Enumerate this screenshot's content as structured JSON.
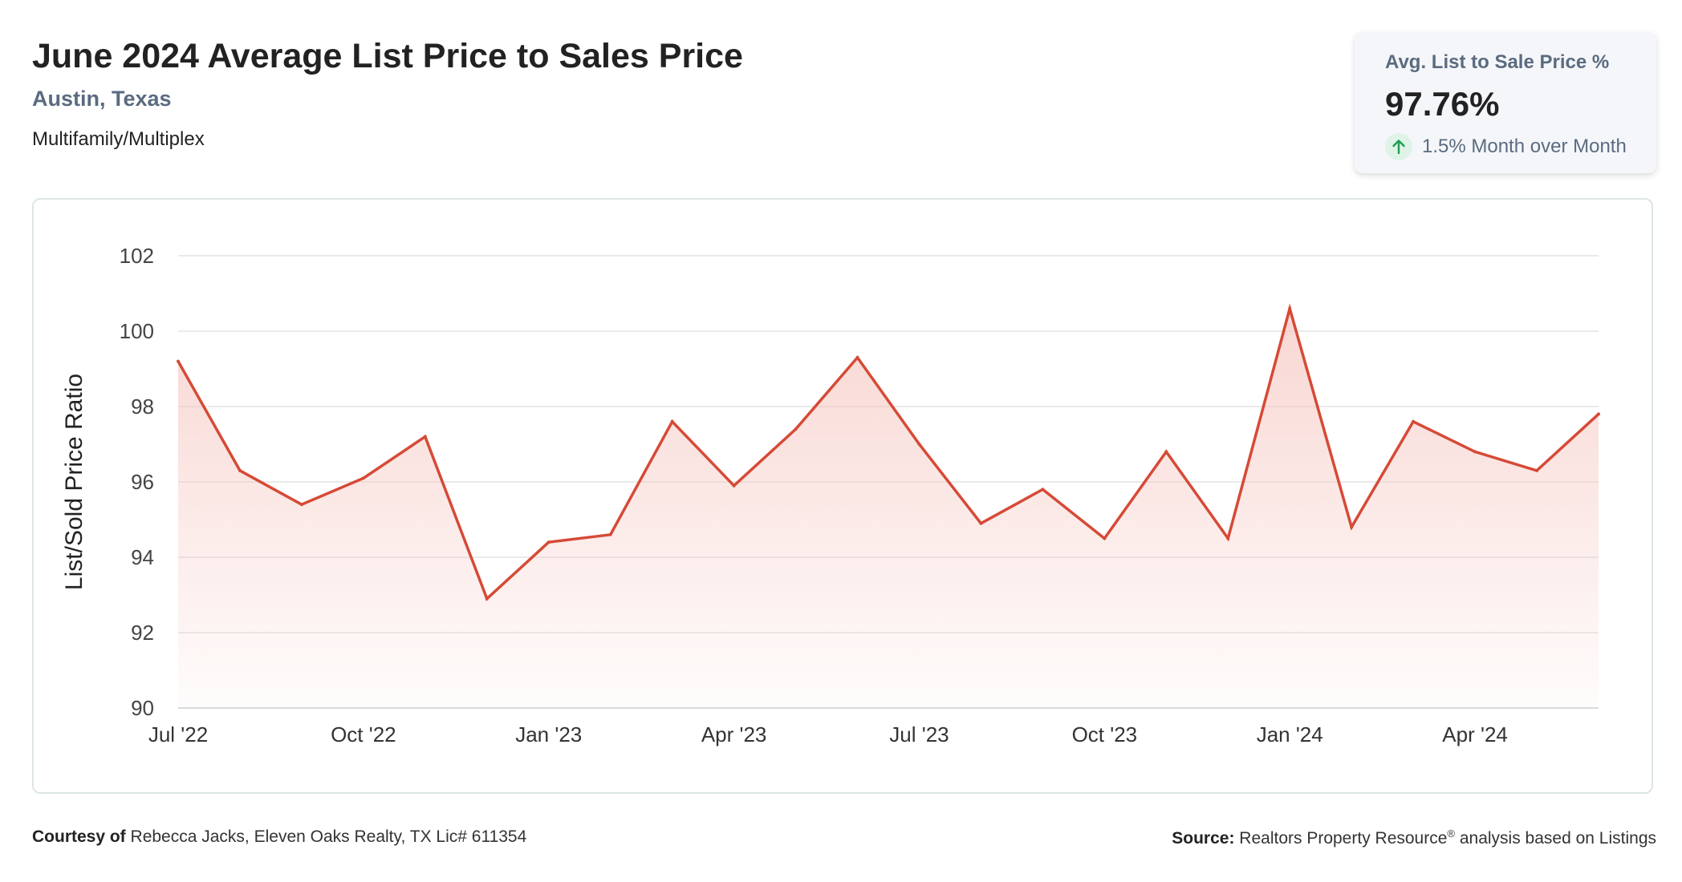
{
  "header": {
    "title": "June 2024 Average List Price to Sales Price",
    "subtitle": "Austin, Texas",
    "category": "Multifamily/Multiplex"
  },
  "stat_card": {
    "label": "Avg. List to Sale Price %",
    "value": "97.76%",
    "change_text": "1.5% Month over Month",
    "change_icon": "arrow-up-icon",
    "change_color": "#1e9e4f"
  },
  "footer": {
    "courtesy_label": "Courtesy of",
    "courtesy_text": "Rebecca Jacks, Eleven Oaks Realty, TX Lic# 611354",
    "source_label": "Source:",
    "source_text_before": "Realtors Property Resource",
    "source_mark": "®",
    "source_text_after": "analysis based on Listings"
  },
  "chart_data": {
    "type": "area",
    "ylabel": "List/Sold Price Ratio",
    "ylim": [
      90,
      102
    ],
    "yticks": [
      "90",
      "92",
      "94",
      "96",
      "98",
      "100",
      "102"
    ],
    "x": [
      "Jul '22",
      "Aug '22",
      "Sep '22",
      "Oct '22",
      "Nov '22",
      "Dec '22",
      "Jan '23",
      "Feb '23",
      "Mar '23",
      "Apr '23",
      "May '23",
      "Jun '23",
      "Jul '23",
      "Aug '23",
      "Sep '23",
      "Oct '23",
      "Nov '23",
      "Dec '23",
      "Jan '24",
      "Feb '24",
      "Mar '24",
      "Apr '24",
      "May '24",
      "Jun '24"
    ],
    "xtick_labels": [
      "Jul '22",
      "Oct '22",
      "Jan '23",
      "Apr '23",
      "Jul '23",
      "Oct '23",
      "Jan '24",
      "Apr '24"
    ],
    "series": [
      {
        "values": [
          99.2,
          96.3,
          95.4,
          96.1,
          97.2,
          92.9,
          94.4,
          94.6,
          97.6,
          95.9,
          97.4,
          99.3,
          97.0,
          94.9,
          95.8,
          94.5,
          96.8,
          94.5,
          100.6,
          94.8,
          97.6,
          96.8,
          96.3,
          97.8
        ]
      }
    ],
    "line_color": "#d64a36",
    "fill_color": "#f6c9c3",
    "grid": true
  }
}
